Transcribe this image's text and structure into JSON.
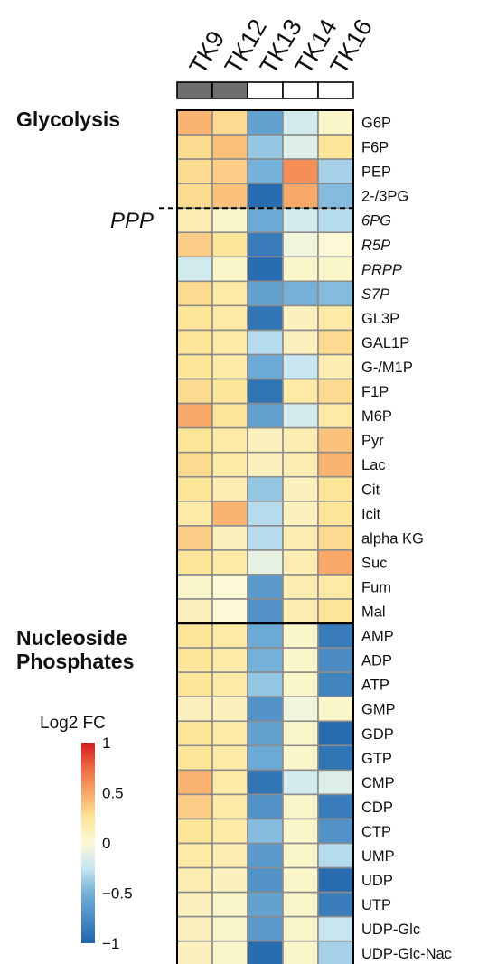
{
  "chart_data": {
    "type": "heatmap",
    "columns": [
      "TK9",
      "TK12",
      "TK13",
      "TK14",
      "TK16"
    ],
    "column_groups": [
      {
        "columns": [
          "TK9",
          "TK12"
        ],
        "color": "#6e6e6e"
      },
      {
        "columns": [
          "TK13",
          "TK14",
          "TK16"
        ],
        "color": "#ffffff"
      }
    ],
    "rows": [
      "G6P",
      "F6P",
      "PEP",
      "2-/3PG",
      "6PG",
      "R5P",
      "PRPP",
      "S7P",
      "GL3P",
      "GAL1P",
      "G-/M1P",
      "F1P",
      "M6P",
      "Pyr",
      "Lac",
      "Cit",
      "Icit",
      "alpha KG",
      "Suc",
      "Fum",
      "Mal",
      "AMP",
      "ADP",
      "ATP",
      "GMP",
      "GDP",
      "GTP",
      "CMP",
      "CDP",
      "CTP",
      "UMP",
      "UDP",
      "UTP",
      "UDP-Glc",
      "UDP-Glc-Nac"
    ],
    "italic_rows": [
      "6PG",
      "R5P",
      "PRPP",
      "S7P"
    ],
    "values": [
      [
        0.45,
        0.3,
        -0.6,
        -0.2,
        0.05
      ],
      [
        0.3,
        0.4,
        -0.4,
        -0.15,
        0.25
      ],
      [
        0.3,
        0.35,
        -0.5,
        0.6,
        -0.35
      ],
      [
        0.3,
        0.4,
        -0.95,
        0.5,
        -0.45
      ],
      [
        0.15,
        0.05,
        -0.55,
        -0.2,
        -0.3
      ],
      [
        0.35,
        0.25,
        -0.85,
        -0.05,
        0.0
      ],
      [
        -0.2,
        0.05,
        -0.95,
        0.05,
        0.05
      ],
      [
        0.3,
        0.2,
        -0.6,
        -0.5,
        -0.45
      ],
      [
        0.25,
        0.2,
        -0.9,
        0.1,
        0.2
      ],
      [
        0.25,
        0.2,
        -0.3,
        0.1,
        0.3
      ],
      [
        0.25,
        0.2,
        -0.55,
        -0.25,
        0.15
      ],
      [
        0.3,
        0.25,
        -0.9,
        0.2,
        0.3
      ],
      [
        0.5,
        0.25,
        -0.6,
        -0.2,
        0.2
      ],
      [
        0.25,
        0.2,
        0.1,
        0.15,
        0.4
      ],
      [
        0.3,
        0.2,
        0.1,
        0.15,
        0.45
      ],
      [
        0.25,
        0.15,
        -0.4,
        0.1,
        0.25
      ],
      [
        0.2,
        0.45,
        -0.3,
        0.1,
        0.25
      ],
      [
        0.35,
        0.1,
        -0.3,
        0.15,
        0.3
      ],
      [
        0.25,
        0.2,
        -0.1,
        0.15,
        0.5
      ],
      [
        0.05,
        0.0,
        -0.65,
        0.15,
        0.2
      ],
      [
        0.1,
        0.0,
        -0.7,
        0.15,
        0.25
      ],
      [
        0.25,
        0.2,
        -0.55,
        0.05,
        -0.85
      ],
      [
        0.25,
        0.2,
        -0.5,
        0.05,
        -0.75
      ],
      [
        0.25,
        0.2,
        -0.4,
        0.05,
        -0.8
      ],
      [
        0.1,
        0.1,
        -0.7,
        -0.05,
        0.05
      ],
      [
        0.25,
        0.2,
        -0.6,
        0.05,
        -0.95
      ],
      [
        0.25,
        0.2,
        -0.55,
        0.05,
        -0.9
      ],
      [
        0.45,
        0.2,
        -0.9,
        -0.2,
        -0.15
      ],
      [
        0.35,
        0.2,
        -0.7,
        0.05,
        -0.85
      ],
      [
        0.25,
        0.2,
        -0.45,
        0.05,
        -0.7
      ],
      [
        0.2,
        0.15,
        -0.65,
        0.05,
        -0.3
      ],
      [
        0.15,
        0.1,
        -0.7,
        0.05,
        -0.95
      ],
      [
        0.1,
        0.05,
        -0.6,
        0.05,
        -0.85
      ],
      [
        0.1,
        0.05,
        -0.65,
        0.05,
        -0.25
      ],
      [
        0.1,
        0.05,
        -0.95,
        0.05,
        -0.35
      ]
    ],
    "groups": [
      {
        "label": "Glycolysis",
        "start_row": "G6P"
      },
      {
        "label": "PPP",
        "start_row": "6PG",
        "italic": true,
        "separator": "dashed"
      },
      {
        "label": "Nucleoside\nPhosphates",
        "start_row": "AMP",
        "separator": "solid"
      }
    ],
    "legend": {
      "title": "Log2 FC",
      "ticks": [
        "1",
        "0.5",
        "0",
        "−0.5",
        "−1"
      ],
      "tick_values": [
        1,
        0.5,
        0,
        -0.5,
        -1
      ],
      "range": [
        -1,
        1
      ]
    },
    "colorscale": [
      [
        -1.0,
        "#2166ac"
      ],
      [
        -0.5,
        "#74b0d8"
      ],
      [
        -0.25,
        "#c7e6f2"
      ],
      [
        0.0,
        "#fbf9d6"
      ],
      [
        0.25,
        "#fde69a"
      ],
      [
        0.5,
        "#f8a868"
      ],
      [
        0.75,
        "#ed6a45"
      ],
      [
        1.0,
        "#d7191c"
      ]
    ]
  }
}
